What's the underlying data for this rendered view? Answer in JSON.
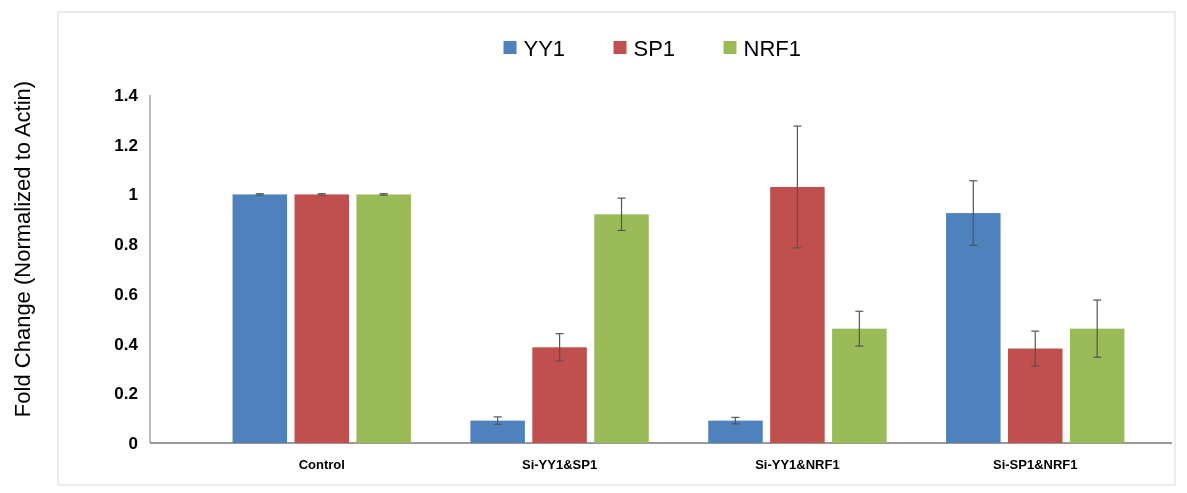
{
  "chart_data": {
    "type": "bar",
    "ylabel": "Fold Change (Normalized to Actin)",
    "categories": [
      "Control",
      "Si-YY1&SP1",
      "Si-YY1&NRF1",
      "Si-SP1&NRF1"
    ],
    "series": [
      {
        "name": "YY1",
        "color": "#4f81bd",
        "values": [
          1,
          0.09,
          0.09,
          0.925
        ],
        "errors": [
          0.003,
          0.015,
          0.013,
          0.13
        ]
      },
      {
        "name": "SP1",
        "color": "#c0504d",
        "values": [
          1,
          0.385,
          1.03,
          0.38
        ],
        "errors": [
          0.003,
          0.055,
          0.245,
          0.07
        ]
      },
      {
        "name": "NRF1",
        "color": "#9bbb59",
        "values": [
          1,
          0.92,
          0.46,
          0.46
        ],
        "errors": [
          0.003,
          0.065,
          0.07,
          0.115
        ]
      }
    ],
    "ylim": [
      0,
      1.4
    ],
    "yticks": [
      0,
      0.2,
      0.4,
      0.6,
      0.8,
      1,
      1.2,
      1.4
    ],
    "legend": "top",
    "grid": false
  }
}
